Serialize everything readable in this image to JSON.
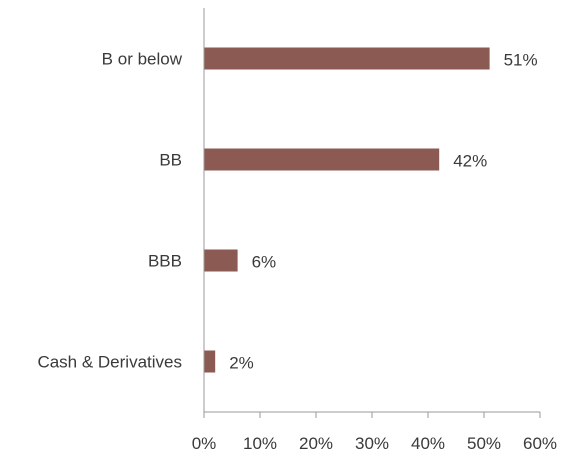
{
  "chart_data": {
    "type": "bar",
    "orientation": "horizontal",
    "title": "",
    "xlabel": "",
    "ylabel": "",
    "categories": [
      "B or below",
      "BB",
      "BBB",
      "Cash & Derivatives"
    ],
    "values": [
      51,
      42,
      6,
      2
    ],
    "data_labels": [
      "51%",
      "42%",
      "6%",
      "2%"
    ],
    "xlim": [
      0,
      60
    ],
    "x_ticks": [
      0,
      10,
      20,
      30,
      40,
      50,
      60
    ],
    "x_tick_labels": [
      "0%",
      "10%",
      "20%",
      "30%",
      "40%",
      "50%",
      "60%"
    ],
    "grid": false,
    "legend": "none",
    "bar_color": "#8b5a52",
    "axis_color": "#9a9a9a"
  }
}
